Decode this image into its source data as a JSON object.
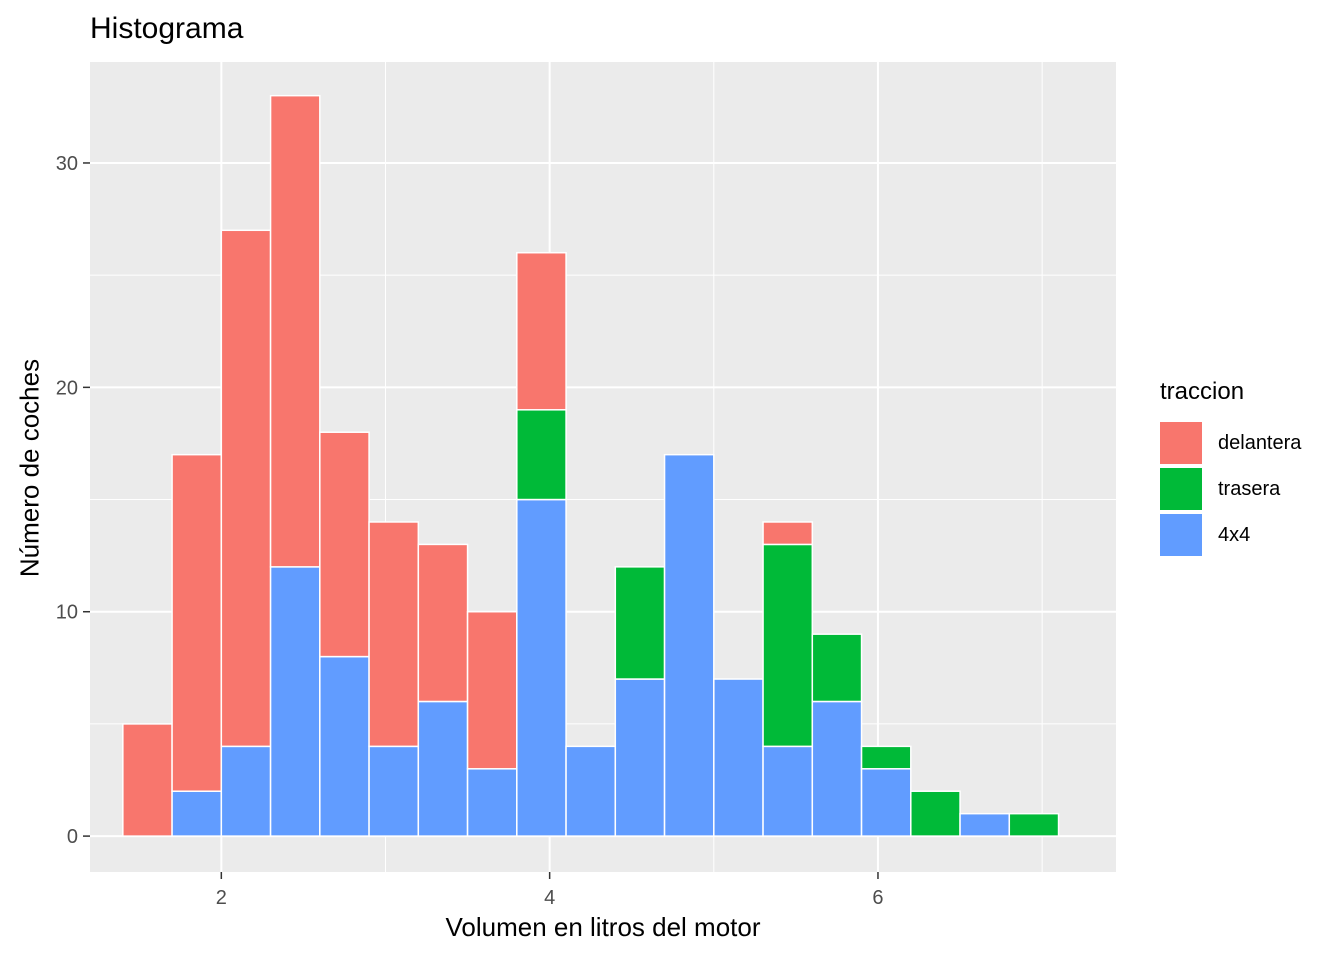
{
  "chart_data": {
    "type": "bar",
    "stacked": true,
    "title": "Histograma",
    "xlabel": "Volumen en litros del motor",
    "ylabel": "Número de coches",
    "xlim": [
      1.2,
      7.45
    ],
    "ylim": [
      -1.6,
      34.5
    ],
    "xticks": [
      2,
      4,
      6
    ],
    "yticks": [
      0,
      10,
      20,
      30
    ],
    "x_minor_gridlines": [
      3,
      5,
      7
    ],
    "y_minor_gridlines": [
      5,
      15,
      25
    ],
    "grid": true,
    "legend_position": "right",
    "legend_title": "traccion",
    "bin_edges": [
      1.4,
      1.7,
      2.0,
      2.3,
      2.6,
      2.9,
      3.2,
      3.5,
      3.8,
      4.1,
      4.4,
      4.7,
      5.0,
      5.3,
      5.6,
      5.9,
      6.2,
      6.5,
      6.8,
      7.1
    ],
    "series": [
      {
        "name": "4x4",
        "color": "#619CFF",
        "values": [
          0,
          2,
          4,
          12,
          8,
          4,
          6,
          3,
          15,
          4,
          7,
          17,
          7,
          4,
          6,
          3,
          0,
          1,
          0
        ]
      },
      {
        "name": "trasera",
        "color": "#00BA38",
        "values": [
          0,
          0,
          0,
          0,
          0,
          0,
          0,
          0,
          4,
          0,
          5,
          0,
          0,
          9,
          3,
          1,
          2,
          0,
          1
        ]
      },
      {
        "name": "delantera",
        "color": "#F8766D",
        "values": [
          5,
          15,
          23,
          21,
          10,
          10,
          7,
          7,
          7,
          0,
          0,
          0,
          0,
          1,
          0,
          0,
          0,
          0,
          0
        ]
      }
    ],
    "totals": [
      5,
      17,
      27,
      33,
      18,
      14,
      13,
      10,
      26,
      4,
      12,
      17,
      7,
      14,
      9,
      4,
      2,
      1,
      1
    ]
  },
  "legend": {
    "title": "traccion",
    "items": [
      {
        "label": "delantera",
        "color": "#F8766D"
      },
      {
        "label": "trasera",
        "color": "#00BA38"
      },
      {
        "label": "4x4",
        "color": "#619CFF"
      }
    ]
  }
}
